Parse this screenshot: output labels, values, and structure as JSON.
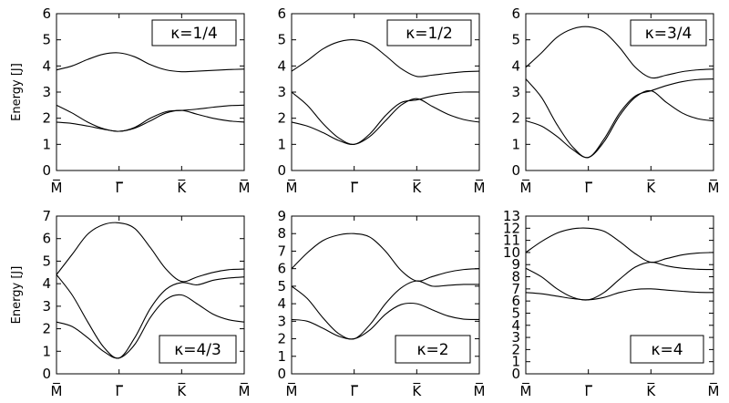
{
  "chart_data": [
    {
      "type": "line",
      "ylabel": "Energy [J]",
      "annotation": "κ=1/4",
      "ylim": [
        0,
        6
      ],
      "yticks": [
        "0",
        "1",
        "2",
        "3",
        "4",
        "5",
        "6"
      ],
      "xticks": [
        "M̅",
        "Γ̅",
        "K̅",
        "M̅"
      ],
      "series": [
        {
          "x": [
            0,
            0.25,
            0.5,
            0.75,
            1,
            1.25,
            1.5,
            1.75,
            2,
            2.25,
            2.5,
            2.75,
            3
          ],
          "values": [
            3.85,
            4.0,
            4.25,
            4.45,
            4.5,
            4.35,
            4.05,
            3.85,
            3.78,
            3.8,
            3.83,
            3.86,
            3.88
          ]
        },
        {
          "x": [
            0,
            0.25,
            0.5,
            0.75,
            1,
            1.25,
            1.5,
            1.75,
            2,
            2.25,
            2.5,
            2.75,
            3
          ],
          "values": [
            2.5,
            2.2,
            1.85,
            1.6,
            1.5,
            1.65,
            2.0,
            2.25,
            2.3,
            2.35,
            2.42,
            2.48,
            2.5
          ]
        },
        {
          "x": [
            0,
            0.25,
            0.5,
            0.75,
            1,
            1.25,
            1.5,
            1.75,
            2,
            2.25,
            2.5,
            2.75,
            3
          ],
          "values": [
            1.85,
            1.8,
            1.7,
            1.58,
            1.5,
            1.62,
            1.9,
            2.2,
            2.3,
            2.15,
            2.0,
            1.9,
            1.85
          ]
        }
      ]
    },
    {
      "type": "line",
      "annotation": "κ=1/2",
      "ylim": [
        0,
        6
      ],
      "yticks": [
        "0",
        "1",
        "2",
        "3",
        "4",
        "5",
        "6"
      ],
      "xticks": [
        "M̅",
        "Γ̅",
        "K̅",
        "M̅"
      ],
      "series": [
        {
          "x": [
            0,
            0.25,
            0.5,
            0.75,
            1,
            1.25,
            1.5,
            1.75,
            2,
            2.25,
            2.5,
            2.75,
            3
          ],
          "values": [
            3.8,
            4.2,
            4.65,
            4.92,
            5.0,
            4.85,
            4.4,
            3.9,
            3.6,
            3.65,
            3.72,
            3.78,
            3.8
          ]
        },
        {
          "x": [
            0,
            0.25,
            0.5,
            0.75,
            1,
            1.25,
            1.5,
            1.75,
            2,
            2.25,
            2.5,
            2.75,
            3
          ],
          "values": [
            3.0,
            2.5,
            1.8,
            1.25,
            1.0,
            1.4,
            2.1,
            2.6,
            2.7,
            2.85,
            2.95,
            3.0,
            3.0
          ]
        },
        {
          "x": [
            0,
            0.25,
            0.5,
            0.75,
            1,
            1.25,
            1.5,
            1.75,
            2,
            2.25,
            2.5,
            2.75,
            3
          ],
          "values": [
            1.85,
            1.7,
            1.45,
            1.15,
            1.0,
            1.3,
            1.9,
            2.5,
            2.75,
            2.45,
            2.15,
            1.95,
            1.85
          ]
        }
      ]
    },
    {
      "type": "line",
      "annotation": "κ=3/4",
      "ylim": [
        0,
        6
      ],
      "yticks": [
        "0",
        "1",
        "2",
        "3",
        "4",
        "5",
        "6"
      ],
      "xticks": [
        "M̅",
        "Γ̅",
        "K̅",
        "M̅"
      ],
      "series": [
        {
          "x": [
            0,
            0.25,
            0.5,
            0.75,
            1,
            1.25,
            1.5,
            1.75,
            2,
            2.25,
            2.5,
            2.75,
            3
          ],
          "values": [
            3.95,
            4.5,
            5.1,
            5.42,
            5.5,
            5.3,
            4.7,
            3.95,
            3.55,
            3.65,
            3.78,
            3.85,
            3.88
          ]
        },
        {
          "x": [
            0,
            0.25,
            0.5,
            0.75,
            1,
            1.25,
            1.5,
            1.75,
            2,
            2.25,
            2.5,
            2.75,
            3
          ],
          "values": [
            3.5,
            2.8,
            1.75,
            0.9,
            0.5,
            1.2,
            2.2,
            2.85,
            3.05,
            3.25,
            3.4,
            3.48,
            3.5
          ]
        },
        {
          "x": [
            0,
            0.25,
            0.5,
            0.75,
            1,
            1.25,
            1.5,
            1.75,
            2,
            2.25,
            2.5,
            2.75,
            3
          ],
          "values": [
            1.9,
            1.7,
            1.3,
            0.8,
            0.5,
            1.1,
            2.1,
            2.8,
            3.05,
            2.6,
            2.2,
            1.98,
            1.9
          ]
        }
      ]
    },
    {
      "type": "line",
      "ylabel": "Energy [J]",
      "annotation": "κ=4/3",
      "ylim": [
        0,
        7
      ],
      "yticks": [
        "0",
        "1",
        "2",
        "3",
        "4",
        "5",
        "6",
        "7"
      ],
      "xticks": [
        "M̅",
        "Γ̅",
        "K̅",
        "M̅"
      ],
      "series": [
        {
          "x": [
            0,
            0.25,
            0.5,
            0.75,
            1,
            1.25,
            1.5,
            1.75,
            2,
            2.25,
            2.5,
            2.75,
            3
          ],
          "values": [
            4.4,
            5.3,
            6.2,
            6.62,
            6.7,
            6.45,
            5.6,
            4.65,
            4.1,
            4.3,
            4.5,
            4.62,
            4.65
          ]
        },
        {
          "x": [
            0,
            0.25,
            0.5,
            0.75,
            1,
            1.25,
            1.5,
            1.75,
            2,
            2.25,
            2.5,
            2.75,
            3
          ],
          "values": [
            4.4,
            3.5,
            2.3,
            1.2,
            0.7,
            1.6,
            2.9,
            3.75,
            4.05,
            3.95,
            4.15,
            4.25,
            4.3
          ]
        },
        {
          "x": [
            0,
            0.25,
            0.5,
            0.75,
            1,
            1.25,
            1.5,
            1.75,
            2,
            2.25,
            2.5,
            2.75,
            3
          ],
          "values": [
            2.3,
            2.1,
            1.6,
            1.0,
            0.7,
            1.3,
            2.5,
            3.3,
            3.5,
            3.1,
            2.65,
            2.4,
            2.3
          ]
        }
      ]
    },
    {
      "type": "line",
      "annotation": "κ=2",
      "ylim": [
        0,
        9
      ],
      "yticks": [
        "0",
        "1",
        "2",
        "3",
        "4",
        "5",
        "6",
        "7",
        "8",
        "9"
      ],
      "xticks": [
        "M̅",
        "Γ̅",
        "K̅",
        "M̅"
      ],
      "series": [
        {
          "x": [
            0,
            0.25,
            0.5,
            0.75,
            1,
            1.25,
            1.5,
            1.75,
            2,
            2.25,
            2.5,
            2.75,
            3
          ],
          "values": [
            6.0,
            6.9,
            7.6,
            7.92,
            8.0,
            7.8,
            7.0,
            5.9,
            5.3,
            5.55,
            5.8,
            5.95,
            6.0
          ]
        },
        {
          "x": [
            0,
            0.25,
            0.5,
            0.75,
            1,
            1.25,
            1.5,
            1.75,
            2,
            2.25,
            2.5,
            2.75,
            3
          ],
          "values": [
            5.0,
            4.3,
            3.2,
            2.3,
            2.0,
            2.8,
            4.0,
            4.9,
            5.3,
            5.0,
            5.05,
            5.1,
            5.1
          ]
        },
        {
          "x": [
            0,
            0.25,
            0.5,
            0.75,
            1,
            1.25,
            1.5,
            1.75,
            2,
            2.25,
            2.5,
            2.75,
            3
          ],
          "values": [
            3.1,
            3.0,
            2.6,
            2.15,
            2.0,
            2.5,
            3.4,
            3.95,
            4.0,
            3.65,
            3.3,
            3.12,
            3.1
          ]
        }
      ]
    },
    {
      "type": "line",
      "annotation": "κ=4",
      "ylim": [
        0,
        13
      ],
      "yticks": [
        "0",
        "1",
        "2",
        "3",
        "4",
        "5",
        "6",
        "7",
        "8",
        "9",
        "10",
        "11",
        "12",
        "13"
      ],
      "xticks": [
        "M̅",
        "Γ̅",
        "K̅",
        "M̅"
      ],
      "series": [
        {
          "x": [
            0,
            0.25,
            0.5,
            0.75,
            1,
            1.25,
            1.5,
            1.75,
            2,
            2.25,
            2.5,
            2.75,
            3
          ],
          "values": [
            10.0,
            10.9,
            11.6,
            11.95,
            12.0,
            11.75,
            10.9,
            9.9,
            9.2,
            9.5,
            9.8,
            9.95,
            10.0
          ]
        },
        {
          "x": [
            0,
            0.25,
            0.5,
            0.75,
            1,
            1.25,
            1.5,
            1.75,
            2,
            2.25,
            2.5,
            2.75,
            3
          ],
          "values": [
            8.7,
            8.0,
            7.0,
            6.3,
            6.1,
            6.7,
            7.8,
            8.8,
            9.2,
            8.9,
            8.7,
            8.62,
            8.6
          ]
        },
        {
          "x": [
            0,
            0.25,
            0.5,
            0.75,
            1,
            1.25,
            1.5,
            1.75,
            2,
            2.25,
            2.5,
            2.75,
            3
          ],
          "values": [
            6.7,
            6.6,
            6.4,
            6.2,
            6.1,
            6.3,
            6.7,
            6.95,
            7.0,
            6.9,
            6.8,
            6.72,
            6.7
          ]
        }
      ]
    }
  ]
}
